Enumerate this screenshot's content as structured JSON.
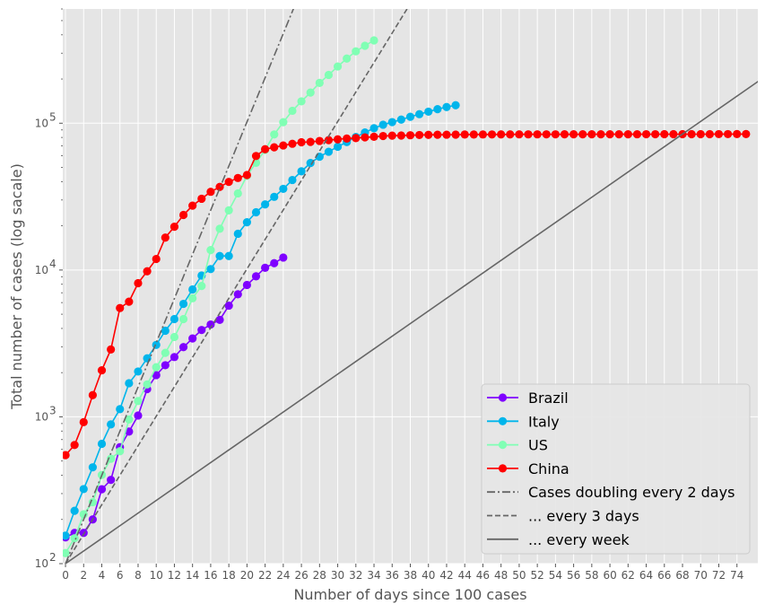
{
  "chart_data": {
    "type": "line",
    "title": "",
    "xlabel": "Number of days since 100 cases",
    "ylabel": "Total number of cases  (log sacale)",
    "yscale": "log",
    "xlim": [
      -0.3,
      76.3
    ],
    "ylim": [
      100,
      600000
    ],
    "grid": true,
    "legend_position": "lower-right",
    "xticks": [
      "0",
      "2",
      "4",
      "6",
      "8",
      "10",
      "12",
      "14",
      "16",
      "18",
      "20",
      "22",
      "24",
      "26",
      "28",
      "30",
      "32",
      "34",
      "36",
      "38",
      "40",
      "42",
      "44",
      "46",
      "48",
      "50",
      "52",
      "54",
      "56",
      "58",
      "60",
      "62",
      "64",
      "66",
      "68",
      "70",
      "72",
      "74"
    ],
    "yticks": [
      {
        "value": 100,
        "base": "10",
        "exp": "2"
      },
      {
        "value": 1000,
        "base": "10",
        "exp": "3"
      },
      {
        "value": 10000,
        "base": "10",
        "exp": "4"
      },
      {
        "value": 100000,
        "base": "10",
        "exp": "5"
      }
    ],
    "series": [
      {
        "name": "Brazil",
        "color": "#7f00ff",
        "marker": "circle",
        "x": [
          0,
          1,
          2,
          3,
          4,
          5,
          6,
          7,
          8,
          9,
          10,
          11,
          12,
          13,
          14,
          15,
          16,
          17,
          18,
          19,
          20,
          21,
          22,
          23,
          24
        ],
        "y": [
          151,
          162,
          162,
          200,
          321,
          372,
          621,
          793,
          1021,
          1546,
          1924,
          2247,
          2554,
          2985,
          3417,
          3904,
          4256,
          4579,
          5717,
          6836,
          7910,
          9056,
          10360,
          11130,
          12161
        ]
      },
      {
        "name": "Italy",
        "color": "#00b5eb",
        "marker": "circle",
        "x": [
          0,
          1,
          2,
          3,
          4,
          5,
          6,
          7,
          8,
          9,
          10,
          11,
          12,
          13,
          14,
          15,
          16,
          17,
          18,
          19,
          20,
          21,
          22,
          23,
          24,
          25,
          26,
          27,
          28,
          29,
          30,
          31,
          32,
          33,
          34,
          35,
          36,
          37,
          38,
          39,
          40,
          41,
          42,
          43
        ],
        "y": [
          155,
          229,
          322,
          453,
          655,
          888,
          1128,
          1694,
          2036,
          2502,
          3089,
          3858,
          4636,
          5883,
          7375,
          9172,
          10149,
          12462,
          12462,
          17660,
          21157,
          24747,
          27980,
          31506,
          35713,
          41035,
          47021,
          53578,
          59138,
          63927,
          69176,
          74386,
          80589,
          86498,
          92472,
          97689,
          101739,
          105792,
          110574,
          115242,
          119827,
          124632,
          128948,
          132547
        ]
      },
      {
        "name": "US",
        "color": "#80ffb4",
        "marker": "circle",
        "x": [
          0,
          1,
          2,
          3,
          4,
          5,
          6,
          7,
          8,
          9,
          10,
          11,
          12,
          13,
          14,
          15,
          16,
          17,
          18,
          19,
          20,
          21,
          22,
          23,
          24,
          25,
          26,
          27,
          28,
          29,
          30,
          31,
          32,
          33,
          34
        ],
        "y": [
          118,
          149,
          217,
          262,
          402,
          518,
          583,
          959,
          1281,
          1663,
          2179,
          2727,
          3499,
          4632,
          6421,
          7786,
          13680,
          19100,
          25489,
          33276,
          43847,
          53740,
          65778,
          83836,
          101657,
          121478,
          140886,
          161807,
          188172,
          213372,
          243453,
          275586,
          308850,
          337072,
          366614
        ]
      },
      {
        "name": "China",
        "color": "#ff0000",
        "marker": "circle",
        "x": [
          0,
          1,
          2,
          3,
          4,
          5,
          6,
          7,
          8,
          9,
          10,
          11,
          12,
          13,
          14,
          15,
          16,
          17,
          18,
          19,
          20,
          21,
          22,
          23,
          24,
          25,
          26,
          27,
          28,
          29,
          30,
          31,
          32,
          33,
          34,
          35,
          36,
          37,
          38,
          39,
          40,
          41,
          42,
          43,
          44,
          45,
          46,
          47,
          48,
          49,
          50,
          51,
          52,
          53,
          54,
          55,
          56,
          57,
          58,
          59,
          60,
          61,
          62,
          63,
          64,
          65,
          66,
          67,
          68,
          69,
          70,
          71,
          72,
          73,
          74,
          75
        ],
        "y": [
          548,
          643,
          920,
          1406,
          2075,
          2877,
          5509,
          6087,
          8141,
          9802,
          11891,
          16630,
          19716,
          23707,
          27440,
          30587,
          34110,
          36814,
          39829,
          42354,
          44386,
          59804,
          66492,
          68500,
          70548,
          72436,
          74185,
          74576,
          75700,
          76677,
          77673,
          78651,
          79205,
          80087,
          80828,
          81820,
          82279,
          82461,
          82804,
          83112,
          83336,
          83426,
          83532,
          83610,
          83736,
          83801,
          83817,
          83851,
          83880,
          83916,
          83958,
          83979,
          83979,
          83998,
          84007,
          84011,
          84022,
          84025,
          84051,
          84051,
          84054,
          84070,
          84082,
          84102,
          84146,
          84153,
          84186,
          84194,
          84201,
          84209,
          84217,
          84228,
          84292,
          84290,
          84306,
          84311
        ]
      },
      {
        "name": "Cases doubling every 2 days",
        "color": "#666666",
        "linestyle": "dashdot",
        "x": [
          0,
          36.5
        ],
        "y": [
          100,
          31000000.0
        ]
      },
      {
        "name": "... every 3 days",
        "color": "#666666",
        "linestyle": "dashed",
        "x": [
          0,
          54.7
        ],
        "y": [
          100,
          31000000.0
        ]
      },
      {
        "name": "... every week",
        "color": "#666666",
        "linestyle": "solid",
        "x": [
          0,
          80
        ],
        "y": [
          100,
          277000.0
        ]
      }
    ]
  }
}
